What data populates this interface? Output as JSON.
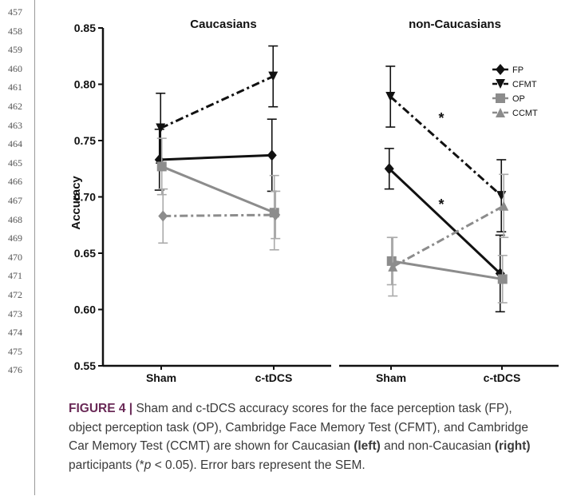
{
  "line_numbers": [
    "457",
    "458",
    "459",
    "460",
    "461",
    "462",
    "463",
    "464",
    "465",
    "466",
    "467",
    "468",
    "469",
    "470",
    "471",
    "472",
    "473",
    "474",
    "475",
    "476"
  ],
  "caption": {
    "label": "FIGURE 4 |",
    "text_1": " Sham and c-tDCS accuracy scores for the face perception task (FP), object perception task (OP), Cambridge Face Memory Test (CFMT), and Cambridge Car Memory Test (CCMT) are shown for Caucasian ",
    "left": "(left)",
    "text_2": " and non-Caucasian ",
    "right": "(right)",
    "text_3": " participants (*",
    "p_italic": "p",
    "text_4": " < 0.05). Error bars represent the SEM."
  },
  "chart_data": {
    "type": "line",
    "ylabel": "Accuracy",
    "ylim": [
      0.55,
      0.85
    ],
    "yticks": [
      "0.55",
      "0.60",
      "0.65",
      "0.70",
      "0.75",
      "0.80",
      "0.85"
    ],
    "categories": [
      "Sham",
      "c-tDCS"
    ],
    "legend_position": "top-right",
    "panels": [
      {
        "title": "Caucasians",
        "series": [
          {
            "name": "FP",
            "values": [
              0.733,
              0.737
            ],
            "errors": [
              0.027,
              0.032
            ],
            "color": "#111111",
            "dash": "solid",
            "marker": "diamond"
          },
          {
            "name": "CFMT",
            "values": [
              0.761,
              0.807
            ],
            "errors": [
              0.031,
              0.027
            ],
            "color": "#111111",
            "dash": "dashdot",
            "marker": "triangle-down"
          },
          {
            "name": "OP",
            "values": [
              0.727,
              0.686
            ],
            "errors": [
              0.025,
              0.033
            ],
            "color": "#8c8c8c",
            "dash": "solid",
            "marker": "square"
          },
          {
            "name": "CCMT",
            "values": [
              0.683,
              0.684
            ],
            "errors": [
              0.024,
              0.021
            ],
            "color": "#8c8c8c",
            "dash": "dashdot",
            "marker": "diamond"
          }
        ],
        "annotations": []
      },
      {
        "title": "non-Caucasians",
        "series": [
          {
            "name": "FP",
            "values": [
              0.725,
              0.632
            ],
            "errors": [
              0.018,
              0.034
            ],
            "color": "#111111",
            "dash": "solid",
            "marker": "diamond"
          },
          {
            "name": "CFMT",
            "values": [
              0.789,
              0.701
            ],
            "errors": [
              0.027,
              0.032
            ],
            "color": "#111111",
            "dash": "dashdot",
            "marker": "triangle-down"
          },
          {
            "name": "OP",
            "values": [
              0.643,
              0.627
            ],
            "errors": [
              0.021,
              0.021
            ],
            "color": "#8c8c8c",
            "dash": "solid",
            "marker": "square"
          },
          {
            "name": "CCMT",
            "values": [
              0.638,
              0.692
            ],
            "errors": [
              0.026,
              0.028
            ],
            "color": "#8c8c8c",
            "dash": "dashdot",
            "marker": "triangle-up"
          }
        ],
        "annotations": [
          "*",
          "*"
        ]
      }
    ]
  }
}
